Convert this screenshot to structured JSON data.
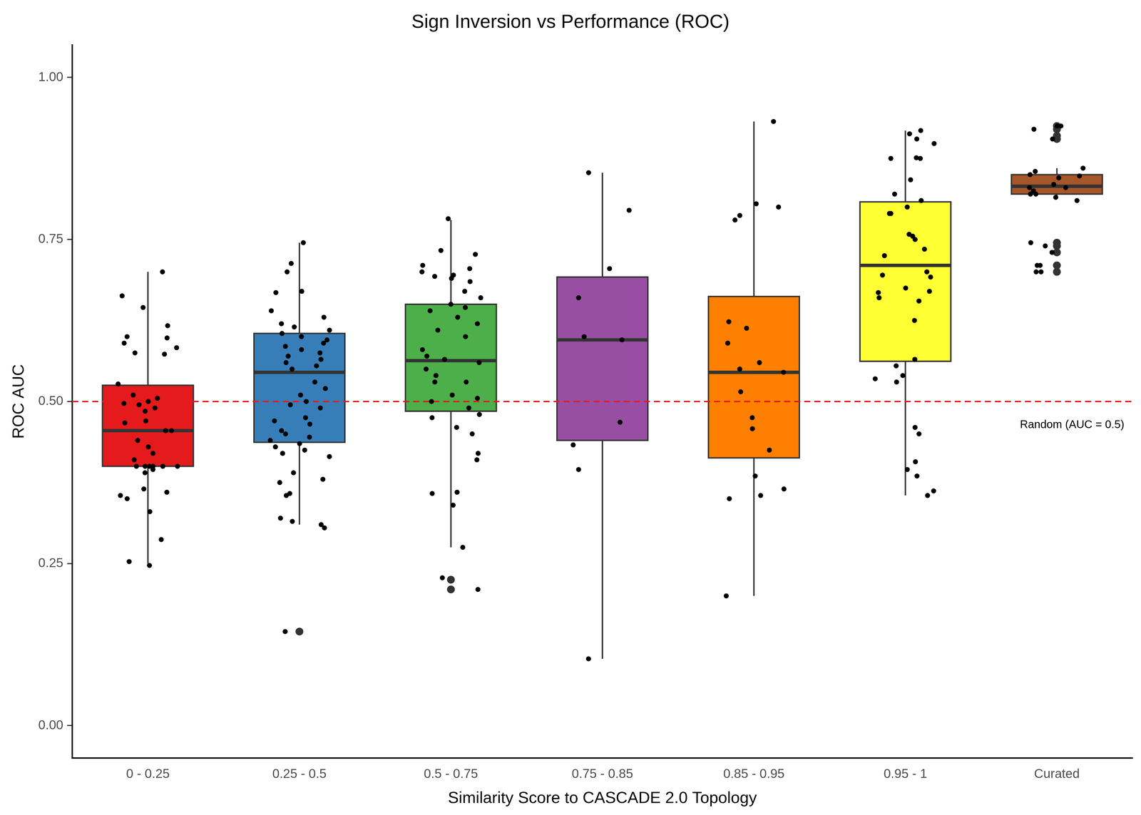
{
  "chart_data": {
    "type": "boxplot",
    "title": "Sign Inversion vs Performance (ROC)",
    "x_label": "Similarity Score to CASCADE 2.0 Topology",
    "y_label": "ROC AUC",
    "categories": [
      "0 - 0.25",
      "0.25 - 0.5",
      "0.5 - 0.75",
      "0.75 - 0.85",
      "0.85 - 0.95",
      "0.95 - 1",
      "Curated"
    ],
    "colors": [
      "#e41a1c",
      "#377eb8",
      "#4daf4a",
      "#984ea3",
      "#ff7f00",
      "#ffff33",
      "#a65628"
    ],
    "boxes": [
      {
        "whisker_low": 0.25,
        "q1": 0.4,
        "median": 0.455,
        "q3": 0.525,
        "whisker_high": 0.7,
        "outliers": []
      },
      {
        "whisker_low": 0.31,
        "q1": 0.437,
        "median": 0.545,
        "q3": 0.605,
        "whisker_high": 0.745,
        "outliers": [
          0.145
        ]
      },
      {
        "whisker_low": 0.275,
        "q1": 0.485,
        "median": 0.563,
        "q3": 0.65,
        "whisker_high": 0.78,
        "outliers": [
          0.21,
          0.225
        ]
      },
      {
        "whisker_low": 0.103,
        "q1": 0.44,
        "median": 0.595,
        "q3": 0.692,
        "whisker_high": 0.853,
        "outliers": []
      },
      {
        "whisker_low": 0.2,
        "q1": 0.413,
        "median": 0.545,
        "q3": 0.662,
        "whisker_high": 0.932,
        "outliers": []
      },
      {
        "whisker_low": 0.355,
        "q1": 0.562,
        "median": 0.71,
        "q3": 0.808,
        "whisker_high": 0.918,
        "outliers": []
      },
      {
        "whisker_low": 0.815,
        "q1": 0.82,
        "median": 0.832,
        "q3": 0.85,
        "whisker_high": 0.86,
        "outliers": [
          0.925,
          0.92,
          0.91,
          0.905,
          0.745,
          0.74,
          0.73,
          0.71,
          0.7
        ]
      }
    ],
    "points": [
      [
        0.7,
        0.663,
        0.645,
        0.617,
        0.6,
        0.598,
        0.59,
        0.583,
        0.575,
        0.573,
        0.527,
        0.51,
        0.505,
        0.5,
        0.497,
        0.495,
        0.49,
        0.485,
        0.47,
        0.467,
        0.455,
        0.455,
        0.44,
        0.43,
        0.42,
        0.41,
        0.4,
        0.4,
        0.4,
        0.4,
        0.4,
        0.4,
        0.395,
        0.39,
        0.365,
        0.36,
        0.355,
        0.35,
        0.33,
        0.287,
        0.253,
        0.247
      ],
      [
        0.745,
        0.713,
        0.7,
        0.67,
        0.668,
        0.64,
        0.63,
        0.62,
        0.615,
        0.61,
        0.605,
        0.6,
        0.595,
        0.59,
        0.585,
        0.58,
        0.575,
        0.57,
        0.565,
        0.56,
        0.555,
        0.55,
        0.53,
        0.52,
        0.51,
        0.5,
        0.495,
        0.49,
        0.475,
        0.47,
        0.465,
        0.455,
        0.45,
        0.445,
        0.44,
        0.435,
        0.43,
        0.425,
        0.42,
        0.415,
        0.39,
        0.38,
        0.375,
        0.358,
        0.355,
        0.32,
        0.315,
        0.31,
        0.305,
        0.145
      ],
      [
        0.782,
        0.733,
        0.727,
        0.71,
        0.705,
        0.7,
        0.695,
        0.693,
        0.69,
        0.685,
        0.67,
        0.66,
        0.65,
        0.645,
        0.64,
        0.63,
        0.62,
        0.61,
        0.6,
        0.58,
        0.57,
        0.565,
        0.56,
        0.55,
        0.54,
        0.53,
        0.53,
        0.51,
        0.505,
        0.5,
        0.49,
        0.48,
        0.475,
        0.46,
        0.45,
        0.42,
        0.41,
        0.36,
        0.358,
        0.34,
        0.275,
        0.228,
        0.21
      ],
      [
        0.853,
        0.795,
        0.705,
        0.66,
        0.6,
        0.595,
        0.468,
        0.433,
        0.395,
        0.103
      ],
      [
        0.932,
        0.805,
        0.8,
        0.787,
        0.78,
        0.623,
        0.613,
        0.59,
        0.56,
        0.55,
        0.545,
        0.515,
        0.475,
        0.458,
        0.425,
        0.385,
        0.365,
        0.355,
        0.35,
        0.2
      ],
      [
        0.918,
        0.913,
        0.905,
        0.898,
        0.876,
        0.875,
        0.875,
        0.842,
        0.82,
        0.81,
        0.8,
        0.79,
        0.79,
        0.758,
        0.755,
        0.75,
        0.735,
        0.725,
        0.7,
        0.695,
        0.692,
        0.675,
        0.67,
        0.668,
        0.66,
        0.655,
        0.625,
        0.565,
        0.555,
        0.54,
        0.535,
        0.53,
        0.46,
        0.45,
        0.407,
        0.395,
        0.385,
        0.362,
        0.355
      ],
      [
        0.925,
        0.925,
        0.92,
        0.905,
        0.86,
        0.855,
        0.85,
        0.848,
        0.845,
        0.835,
        0.83,
        0.83,
        0.825,
        0.82,
        0.82,
        0.815,
        0.81,
        0.745,
        0.74,
        0.73,
        0.73,
        0.71,
        0.71,
        0.7,
        0.7
      ]
    ],
    "reference_line": {
      "value": 0.5,
      "label": "Random (AUC = 0.5)",
      "color": "#e41a1c",
      "line_style": "dashed"
    },
    "ylim": [
      -0.05,
      1.05
    ],
    "yticks": [
      {
        "value": 0,
        "label": "0.00"
      },
      {
        "value": 0.25,
        "label": "0.25"
      },
      {
        "value": 0.5,
        "label": "0.50"
      },
      {
        "value": 0.75,
        "label": "0.75"
      },
      {
        "value": 1,
        "label": "1.00"
      }
    ],
    "grid": false
  }
}
